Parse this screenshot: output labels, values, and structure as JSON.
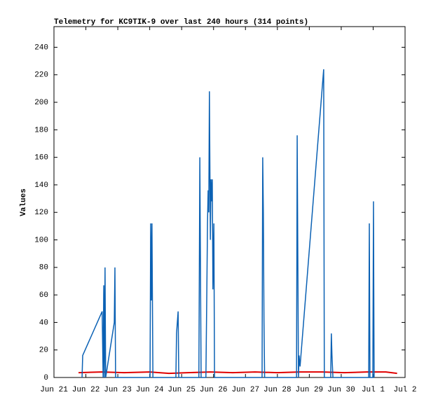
{
  "chart_data": {
    "type": "line",
    "title": "Telemetry for KC9TIK-9 over last 240 hours (314 points)",
    "ylabel": "Values",
    "xlim": [
      0,
      11
    ],
    "xticks": [
      {
        "value": 0,
        "label": "Jun 21"
      },
      {
        "value": 1,
        "label": "Jun 22"
      },
      {
        "value": 2,
        "label": "Jun 23"
      },
      {
        "value": 3,
        "label": "Jun 24"
      },
      {
        "value": 4,
        "label": "Jun 25"
      },
      {
        "value": 5,
        "label": "Jun 26"
      },
      {
        "value": 6,
        "label": "Jun 27"
      },
      {
        "value": 7,
        "label": "Jun 28"
      },
      {
        "value": 8,
        "label": "Jun 29"
      },
      {
        "value": 9,
        "label": "Jun 30"
      },
      {
        "value": 10,
        "label": "Jul 1"
      },
      {
        "value": 11,
        "label": "Jul 2"
      }
    ],
    "ylim": [
      0,
      255
    ],
    "yticks": [
      0,
      20,
      40,
      60,
      80,
      100,
      120,
      140,
      160,
      180,
      200,
      220,
      240
    ],
    "grid": false,
    "series": [
      {
        "color": "#e00000",
        "x": [
          0.77,
          1.5,
          2.2,
          3.0,
          3.6,
          4.2,
          4.9,
          5.6,
          6.3,
          7.0,
          7.7,
          8.4,
          9.1,
          9.8,
          10.4,
          10.75
        ],
        "values": [
          3.5,
          4,
          3.5,
          4,
          3,
          3.5,
          4,
          3.5,
          4,
          3.5,
          4,
          4,
          3.5,
          4,
          4,
          3
        ]
      },
      {
        "color": "#0b61b4",
        "x": [
          0.88,
          0.9,
          1.51,
          1.54,
          1.56,
          1.58,
          1.6,
          1.62,
          1.89,
          1.91,
          1.93,
          3.01,
          3.03,
          3.05,
          3.07,
          3.1,
          3.82,
          3.84,
          3.89,
          3.91,
          4.54,
          4.57,
          4.59,
          4.61,
          4.76,
          4.79,
          4.81,
          4.83,
          4.85,
          4.87,
          4.9,
          4.92,
          4.94,
          4.96,
          4.98,
          5.01,
          5.03,
          6.52,
          6.54,
          6.56,
          6.58,
          6.6,
          7.6,
          7.62,
          7.64,
          7.66,
          7.68,
          7.71,
          8.45,
          8.47,
          8.67,
          8.69,
          8.71,
          8.74,
          9.86,
          9.88,
          9.9,
          9.99,
          10.01,
          10.03
        ],
        "values": [
          0,
          16,
          48,
          0,
          67,
          0,
          80,
          0,
          40,
          80,
          0,
          0,
          112,
          56,
          112,
          0,
          0,
          32,
          48,
          0,
          0,
          160,
          80,
          0,
          0,
          64,
          112,
          136,
          120,
          208,
          100,
          144,
          128,
          144,
          64,
          112,
          0,
          0,
          160,
          120,
          40,
          0,
          0,
          176,
          88,
          0,
          16,
          8,
          224,
          0,
          0,
          32,
          16,
          0,
          0,
          112,
          0,
          0,
          128,
          0
        ]
      }
    ]
  }
}
